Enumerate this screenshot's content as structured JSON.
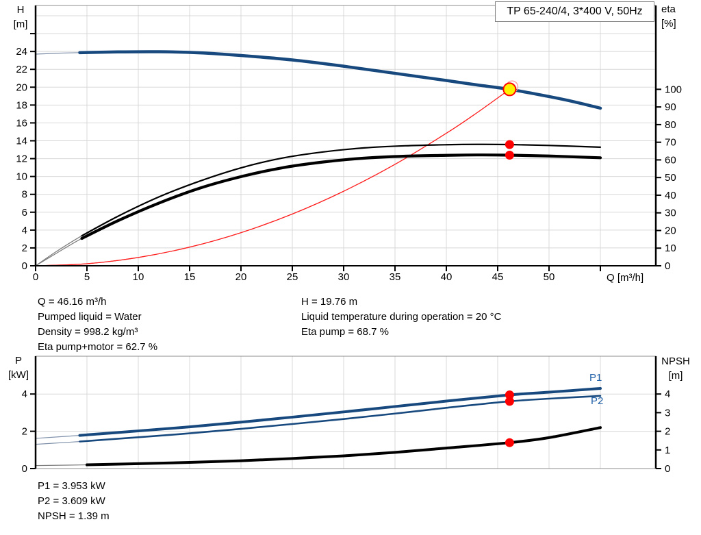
{
  "title_box": "TP 65-240/4, 3*400 V, 50Hz",
  "colors": {
    "curve_blue": "#17497E",
    "series_label_blue": "#2060A8",
    "red": "#FF0000",
    "duty_yellow": "#FFF200",
    "ghost_ring_red": "#FF9999",
    "thin_lead_gray": "#7A7A7A",
    "thin_lead_blue": "#7D8FA9",
    "grid": "#D8D8D8",
    "border": "#8C8C8C",
    "axis": "#000000"
  },
  "annotations": {
    "left_column": [
      "Q = 46.16 m³/h",
      "Pumped liquid = Water",
      "Density = 998.2 kg/m³",
      "Eta pump+motor = 62.7 %"
    ],
    "right_column": [
      "H = 19.76 m",
      "Liquid temperature during operation = 20 °C",
      "Eta pump = 68.7 %"
    ],
    "bottom": [
      "P1 = 3.953 kW",
      "P2 = 3.609 kW",
      "NPSH = 1.39 m"
    ]
  },
  "duty_point": {
    "Q": 46.16,
    "H": 19.76,
    "eta_pump": 68.7,
    "eta_pump_motor": 62.7,
    "P1_kW": 3.953,
    "P2_kW": 3.609,
    "NPSH_m": 1.39
  },
  "chart_data": [
    {
      "id": "qh",
      "type": "line",
      "title": "TP 65-240/4, 3*400 V, 50Hz",
      "grid": true,
      "x_axis": {
        "label": "Q [m³/h]",
        "min": 0,
        "max": 60.4,
        "tick_values": [
          0,
          5,
          10,
          15,
          20,
          25,
          30,
          35,
          40,
          45,
          50,
          55
        ],
        "tick_labels": [
          "0",
          "5",
          "10",
          "15",
          "20",
          "25",
          "30",
          "35",
          "40",
          "45",
          "50",
          ""
        ],
        "grid_values": [
          5,
          10,
          15,
          20,
          25,
          30,
          35,
          40,
          45,
          50,
          55
        ]
      },
      "y_left": {
        "label": "H [m]",
        "label_lines": [
          "H",
          "[m]"
        ],
        "min": 0,
        "max": 29.15,
        "tick_values": [
          0,
          2,
          4,
          6,
          8,
          10,
          12,
          14,
          16,
          18,
          20,
          22,
          24,
          26
        ],
        "tick_labels": [
          "0",
          "2",
          "4",
          "6",
          "8",
          "10",
          "12",
          "14",
          "16",
          "18",
          "20",
          "22",
          "24",
          ""
        ],
        "grid_values": [
          2,
          4,
          6,
          8,
          10,
          12,
          14,
          16,
          18,
          20,
          22,
          24,
          26,
          28
        ]
      },
      "y_right": {
        "label": "eta [%]",
        "label_lines": [
          "eta",
          "[%]"
        ],
        "min": 0,
        "max": 147.5,
        "tick_values": [
          0,
          10,
          20,
          30,
          40,
          50,
          60,
          70,
          80,
          90,
          100
        ],
        "tick_labels": [
          "0",
          "10",
          "20",
          "30",
          "40",
          "50",
          "60",
          "70",
          "80",
          "90",
          "100"
        ],
        "grid_values": []
      },
      "series": [
        {
          "name": "system curve",
          "axis": "left",
          "color": "#FF2020",
          "width": 1.2,
          "thin_until": 0,
          "thin_color": "#FF2020",
          "points": [
            [
              0,
              0
            ],
            [
              5,
              0.23
            ],
            [
              10,
              0.93
            ],
            [
              15,
              2.09
            ],
            [
              20,
              3.71
            ],
            [
              25,
              5.8
            ],
            [
              30,
              8.35
            ],
            [
              35,
              11.36
            ],
            [
              40,
              14.84
            ],
            [
              43,
              17.15
            ],
            [
              46.16,
              19.76
            ]
          ]
        },
        {
          "name": "H",
          "axis": "left",
          "color": "#17497E",
          "width": 4.5,
          "thin_until": 4.3,
          "thin_color": "#7D8FA9",
          "points": [
            [
              0,
              23.7
            ],
            [
              2,
              23.8
            ],
            [
              4.3,
              23.87
            ],
            [
              8,
              23.95
            ],
            [
              12,
              23.97
            ],
            [
              16,
              23.85
            ],
            [
              20,
              23.55
            ],
            [
              25,
              23.05
            ],
            [
              30,
              22.35
            ],
            [
              35,
              21.55
            ],
            [
              40,
              20.75
            ],
            [
              43,
              20.25
            ],
            [
              46.16,
              19.76
            ],
            [
              50,
              18.95
            ],
            [
              52.5,
              18.35
            ],
            [
              55,
              17.65
            ]
          ]
        },
        {
          "name": "eta pump",
          "axis": "right",
          "color": "#000000",
          "width": 2.2,
          "thin_until": 4.5,
          "thin_color": "#7A7A7A",
          "points": [
            [
              0,
              0
            ],
            [
              2,
              8
            ],
            [
              4.5,
              17
            ],
            [
              8,
              28
            ],
            [
              12,
              39
            ],
            [
              16,
              48
            ],
            [
              20,
              55.5
            ],
            [
              24,
              61
            ],
            [
              28,
              64.5
            ],
            [
              32,
              66.8
            ],
            [
              36,
              68
            ],
            [
              40,
              68.6
            ],
            [
              43,
              68.8
            ],
            [
              46.16,
              68.7
            ],
            [
              50,
              68.2
            ],
            [
              55,
              67.2
            ]
          ]
        },
        {
          "name": "eta pump+motor",
          "axis": "right",
          "color": "#000000",
          "width": 4.2,
          "thin_until": 4.5,
          "thin_color": "#7A7A7A",
          "points": [
            [
              0,
              0
            ],
            [
              2,
              7
            ],
            [
              4.5,
              15.5
            ],
            [
              8,
              25.5
            ],
            [
              12,
              35.5
            ],
            [
              16,
              44
            ],
            [
              20,
              50.5
            ],
            [
              24,
              55.5
            ],
            [
              28,
              58.8
            ],
            [
              32,
              61
            ],
            [
              36,
              62.1
            ],
            [
              40,
              62.6
            ],
            [
              43,
              62.8
            ],
            [
              46.16,
              62.7
            ],
            [
              50,
              62.2
            ],
            [
              55,
              61.2
            ]
          ]
        }
      ],
      "markers": [
        {
          "name": "rated-duty-ring",
          "axis": "left",
          "q": 46.4,
          "v": 20.05,
          "r": 8.5,
          "fill": "none",
          "stroke": "#FF9999",
          "sw": 1.3
        },
        {
          "name": "duty-point",
          "axis": "left",
          "q": 46.16,
          "v": 19.76,
          "r": 9,
          "fill": "#FFF200",
          "stroke": "#FF0000",
          "sw": 2
        },
        {
          "name": "eta-pump-point",
          "axis": "right",
          "q": 46.16,
          "v": 68.7,
          "r": 6.5,
          "fill": "#FF0000",
          "stroke": "none",
          "sw": 0
        },
        {
          "name": "eta-pump-motor-point",
          "axis": "right",
          "q": 46.16,
          "v": 62.7,
          "r": 6.5,
          "fill": "#FF0000",
          "stroke": "none",
          "sw": 0
        }
      ]
    },
    {
      "id": "power-npsh",
      "type": "line",
      "title": "",
      "grid": true,
      "x_axis": {
        "label": "",
        "min": 0,
        "max": 60.4,
        "tick_values": [],
        "tick_labels": [],
        "grid_values": [
          5,
          10,
          15,
          20,
          25,
          30,
          35,
          40,
          45,
          50,
          55
        ]
      },
      "y_left": {
        "label": "P [kW]",
        "label_lines": [
          "P",
          "[kW]"
        ],
        "min": 0,
        "max": 6.03,
        "tick_values": [
          0,
          2,
          4
        ],
        "tick_labels": [
          "0",
          "2",
          "4"
        ],
        "grid_values": [
          2,
          4
        ]
      },
      "y_right": {
        "label": "NPSH [m]",
        "label_lines": [
          "NPSH",
          "[m]"
        ],
        "min": 0,
        "max": 6.03,
        "tick_values": [
          0,
          1,
          2,
          3,
          4
        ],
        "tick_labels": [
          "0",
          "1",
          "2",
          "3",
          "4"
        ],
        "grid_values": []
      },
      "series": [
        {
          "name": "P1",
          "axis": "left",
          "color": "#17497E",
          "width": 4,
          "thin_until": 4.3,
          "thin_color": "#7D8FA9",
          "points": [
            [
              0,
              1.62
            ],
            [
              4.3,
              1.78
            ],
            [
              10,
              2.02
            ],
            [
              15,
              2.24
            ],
            [
              20,
              2.49
            ],
            [
              25,
              2.76
            ],
            [
              30,
              3.04
            ],
            [
              35,
              3.33
            ],
            [
              40,
              3.62
            ],
            [
              46.16,
              3.953
            ],
            [
              50,
              4.1
            ],
            [
              55,
              4.3
            ]
          ]
        },
        {
          "name": "P2",
          "axis": "left",
          "color": "#17497E",
          "width": 2.6,
          "thin_until": 4.3,
          "thin_color": "#7D8FA9",
          "points": [
            [
              0,
              1.3
            ],
            [
              4.3,
              1.45
            ],
            [
              10,
              1.68
            ],
            [
              15,
              1.89
            ],
            [
              20,
              2.13
            ],
            [
              25,
              2.39
            ],
            [
              30,
              2.66
            ],
            [
              35,
              2.95
            ],
            [
              40,
              3.26
            ],
            [
              46.16,
              3.609
            ],
            [
              50,
              3.75
            ],
            [
              55,
              3.9
            ]
          ]
        },
        {
          "name": "NPSH",
          "axis": "right",
          "color": "#000000",
          "width": 4,
          "thin_until": 4.3,
          "thin_color": "#7A7A7A",
          "points": [
            [
              0,
              0.16
            ],
            [
              5,
              0.2
            ],
            [
              10,
              0.26
            ],
            [
              15,
              0.33
            ],
            [
              20,
              0.42
            ],
            [
              25,
              0.54
            ],
            [
              30,
              0.68
            ],
            [
              35,
              0.87
            ],
            [
              40,
              1.1
            ],
            [
              46.16,
              1.39
            ],
            [
              50,
              1.66
            ],
            [
              55,
              2.2
            ]
          ]
        }
      ],
      "markers": [
        {
          "name": "p1-point",
          "axis": "left",
          "q": 46.16,
          "v": 3.953,
          "r": 6.5,
          "fill": "#FF0000",
          "stroke": "none",
          "sw": 0
        },
        {
          "name": "p2-point",
          "axis": "left",
          "q": 46.16,
          "v": 3.609,
          "r": 6.5,
          "fill": "#FF0000",
          "stroke": "none",
          "sw": 0
        },
        {
          "name": "npsh-point",
          "axis": "right",
          "q": 46.16,
          "v": 1.39,
          "r": 6.5,
          "fill": "#FF0000",
          "stroke": "none",
          "sw": 0
        }
      ]
    }
  ]
}
